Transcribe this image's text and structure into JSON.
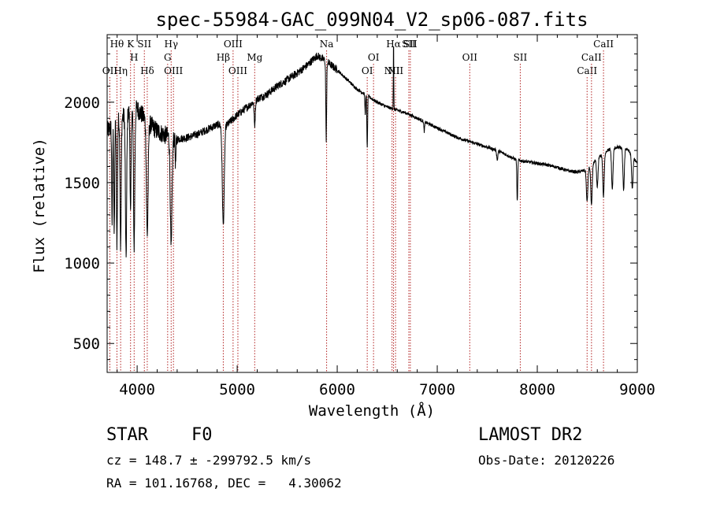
{
  "chart_data": {
    "type": "line",
    "title": "spec-55984-GAC_099N04_V2_sp06-087.fits",
    "xlabel": "Wavelength (Å)",
    "ylabel": "Flux (relative)",
    "xlim": [
      3700,
      9000
    ],
    "ylim": [
      320,
      2420
    ],
    "x_ticks": [
      4000,
      5000,
      6000,
      7000,
      8000,
      9000
    ],
    "y_ticks": [
      500,
      1000,
      1500,
      2000
    ],
    "grid": false,
    "line_color": "#000000",
    "marker_color": "#b22222",
    "continuum": [
      [
        3700,
        1820
      ],
      [
        3800,
        1880
      ],
      [
        3900,
        1930
      ],
      [
        4000,
        1960
      ],
      [
        4100,
        1880
      ],
      [
        4200,
        1820
      ],
      [
        4300,
        1790
      ],
      [
        4400,
        1770
      ],
      [
        4500,
        1780
      ],
      [
        4600,
        1800
      ],
      [
        4700,
        1830
      ],
      [
        4800,
        1860
      ],
      [
        4900,
        1860
      ],
      [
        5000,
        1920
      ],
      [
        5100,
        1970
      ],
      [
        5200,
        2020
      ],
      [
        5300,
        2050
      ],
      [
        5400,
        2100
      ],
      [
        5500,
        2140
      ],
      [
        5600,
        2180
      ],
      [
        5700,
        2230
      ],
      [
        5800,
        2290
      ],
      [
        5850,
        2270
      ],
      [
        5900,
        2250
      ],
      [
        6000,
        2200
      ],
      [
        6100,
        2140
      ],
      [
        6200,
        2080
      ],
      [
        6300,
        2040
      ],
      [
        6400,
        2000
      ],
      [
        6500,
        1970
      ],
      [
        6600,
        1950
      ],
      [
        6700,
        1930
      ],
      [
        6800,
        1900
      ],
      [
        6900,
        1870
      ],
      [
        7000,
        1840
      ],
      [
        7100,
        1810
      ],
      [
        7200,
        1780
      ],
      [
        7300,
        1760
      ],
      [
        7400,
        1740
      ],
      [
        7500,
        1720
      ],
      [
        7600,
        1700
      ],
      [
        7700,
        1670
      ],
      [
        7800,
        1640
      ],
      [
        7900,
        1630
      ],
      [
        8000,
        1620
      ],
      [
        8100,
        1610
      ],
      [
        8200,
        1595
      ],
      [
        8300,
        1575
      ],
      [
        8400,
        1565
      ],
      [
        8500,
        1580
      ],
      [
        8600,
        1650
      ],
      [
        8700,
        1700
      ],
      [
        8800,
        1720
      ],
      [
        8900,
        1710
      ],
      [
        9000,
        1620
      ]
    ],
    "absorption_lines": [
      {
        "x": 3750,
        "depth": 600,
        "width": 6
      },
      {
        "x": 3771,
        "depth": 700,
        "width": 6
      },
      {
        "x": 3798,
        "depth": 750,
        "width": 7
      },
      {
        "x": 3835,
        "depth": 800,
        "width": 8
      },
      {
        "x": 3889,
        "depth": 900,
        "width": 9
      },
      {
        "x": 3934,
        "depth": 650,
        "width": 7
      },
      {
        "x": 3970,
        "depth": 850,
        "width": 9
      },
      {
        "x": 4101,
        "depth": 700,
        "width": 12
      },
      {
        "x": 4340,
        "depth": 700,
        "width": 12
      },
      {
        "x": 4384,
        "depth": 150,
        "width": 6
      },
      {
        "x": 4861,
        "depth": 620,
        "width": 14
      },
      {
        "x": 5175,
        "depth": 150,
        "width": 8
      },
      {
        "x": 5890,
        "depth": 480,
        "width": 6
      },
      {
        "x": 6280,
        "depth": 120,
        "width": 5
      },
      {
        "x": 6300,
        "depth": 330,
        "width": 5
      },
      {
        "x": 6870,
        "depth": 60,
        "width": 6
      },
      {
        "x": 7600,
        "depth": 60,
        "width": 8
      },
      {
        "x": 7800,
        "depth": 260,
        "width": 6
      },
      {
        "x": 8498,
        "depth": 200,
        "width": 10
      },
      {
        "x": 8542,
        "depth": 250,
        "width": 10
      },
      {
        "x": 8600,
        "depth": 180,
        "width": 10
      },
      {
        "x": 8662,
        "depth": 270,
        "width": 10
      },
      {
        "x": 8750,
        "depth": 250,
        "width": 10
      },
      {
        "x": 8863,
        "depth": 260,
        "width": 10
      },
      {
        "x": 8950,
        "depth": 200,
        "width": 10
      }
    ],
    "emission_lines": [
      {
        "x": 6563,
        "height": 430,
        "width": 3
      }
    ],
    "line_markers": [
      {
        "x": 3727,
        "label": "OII",
        "row": 3
      },
      {
        "x": 3798,
        "label": "Hθ",
        "row": 0
      },
      {
        "x": 3835,
        "label": "Hη",
        "row": 3
      },
      {
        "x": 3934,
        "label": "K",
        "row": 0
      },
      {
        "x": 3970,
        "label": "H",
        "row": 1
      },
      {
        "x": 4072,
        "label": "SII",
        "row": 0
      },
      {
        "x": 4101,
        "label": "Hδ",
        "row": 2
      },
      {
        "x": 4305,
        "label": "G",
        "row": 1
      },
      {
        "x": 4340,
        "label": "Hγ",
        "row": 0
      },
      {
        "x": 4363,
        "label": "OIII",
        "row": 2
      },
      {
        "x": 4861,
        "label": "Hβ",
        "row": 1
      },
      {
        "x": 4959,
        "label": "OIII",
        "row": 0
      },
      {
        "x": 5007,
        "label": "OIII",
        "row": 2
      },
      {
        "x": 5175,
        "label": "Mg",
        "row": 1
      },
      {
        "x": 5894,
        "label": "Na",
        "row": 0
      },
      {
        "x": 6300,
        "label": "OI",
        "row": 2
      },
      {
        "x": 6363,
        "label": "OI",
        "row": 1
      },
      {
        "x": 6548,
        "label": "NII",
        "row": 2
      },
      {
        "x": 6563,
        "label": "Hα",
        "row": 0
      },
      {
        "x": 6583,
        "label": "NII",
        "row": 2
      },
      {
        "x": 6716,
        "label": "SII",
        "row": 0
      },
      {
        "x": 6731,
        "label": "SII",
        "row": 0
      },
      {
        "x": 7325,
        "label": "OII",
        "row": 1
      },
      {
        "x": 7830,
        "label": "SII",
        "row": 1
      },
      {
        "x": 8498,
        "label": "CaII",
        "row": 2
      },
      {
        "x": 8542,
        "label": "CaII",
        "row": 1
      },
      {
        "x": 8662,
        "label": "CaII",
        "row": 0
      }
    ]
  },
  "footer": {
    "object_class": "STAR",
    "subclass": "F0",
    "survey": "LAMOST DR2",
    "redshift": "cz = 148.7 ± -299792.5 km/s",
    "obs_date": "Obs-Date: 20120226",
    "coords": "RA = 101.16768, DEC =   4.30062"
  }
}
